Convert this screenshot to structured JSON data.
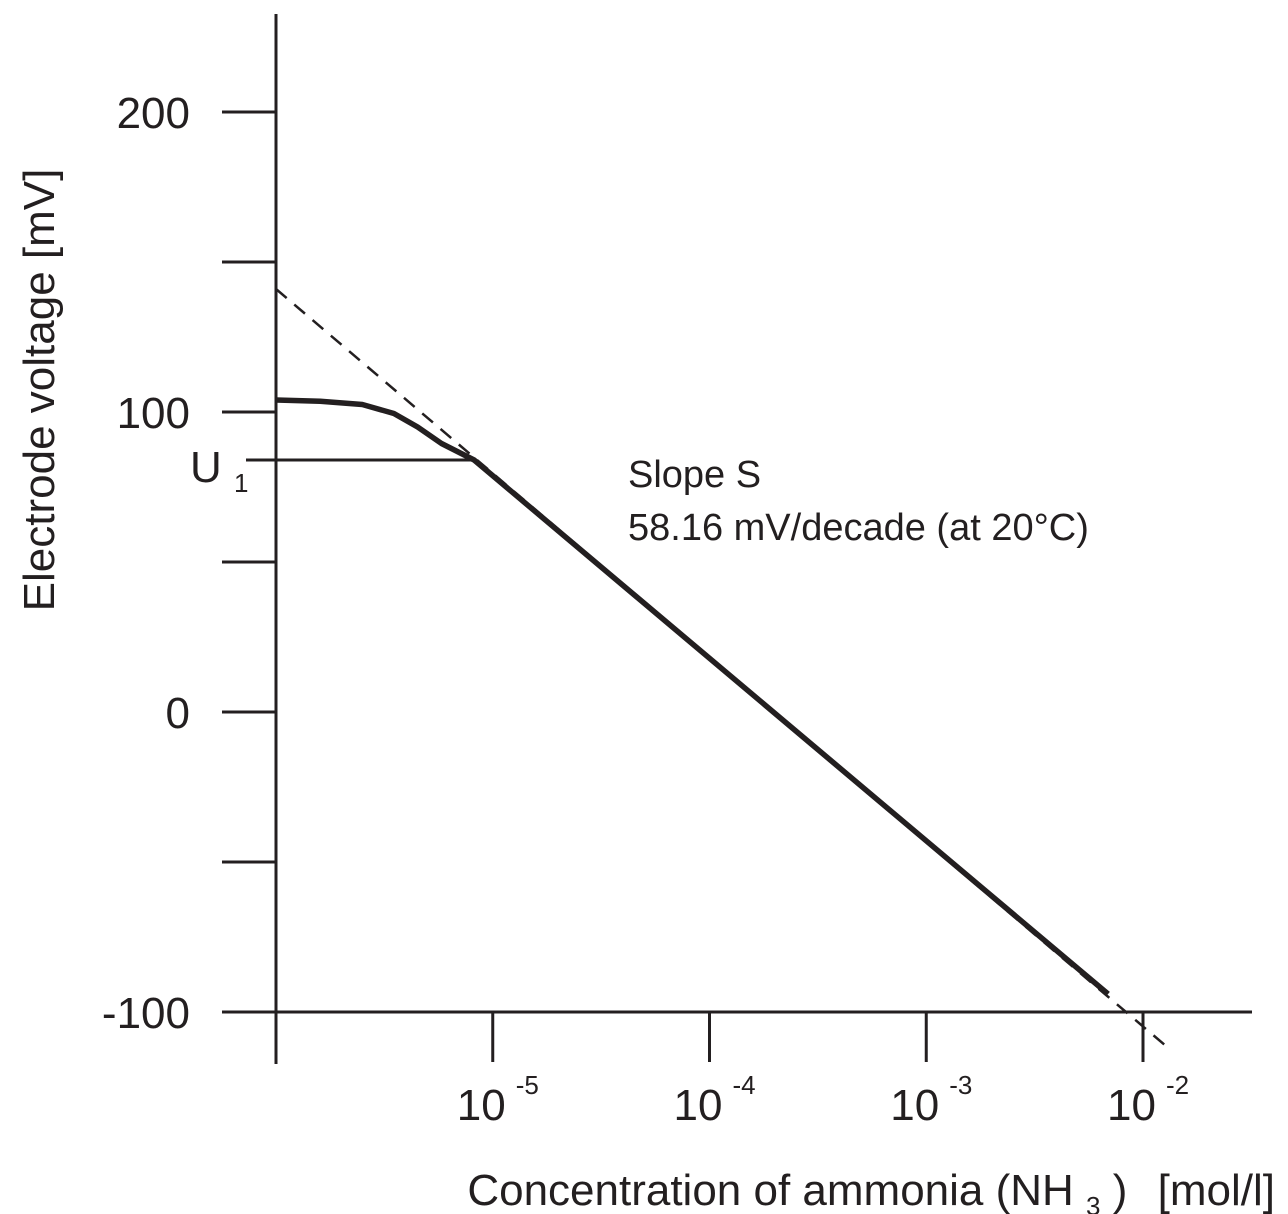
{
  "chart_data": {
    "type": "line",
    "title": "",
    "xlabel": {
      "text": "Concentration of ammonia (NH",
      "sub": "3",
      "close": ")",
      "unit": "[mol/l]"
    },
    "ylabel": "Electrode voltage [mV]",
    "x_scale": "log",
    "xlim": [
      1e-06,
      0.02
    ],
    "ylim": [
      -100,
      232
    ],
    "y_major_ticks": [
      -100,
      0,
      100,
      200
    ],
    "y_minor_ticks": [
      -50,
      50,
      150
    ],
    "y_tick_labels": [
      "-100",
      "0",
      "100",
      "200"
    ],
    "x_ticks": [
      {
        "value": 1e-05,
        "base": "10",
        "exp": "-5"
      },
      {
        "value": 0.0001,
        "base": "10",
        "exp": "-4"
      },
      {
        "value": 0.001,
        "base": "10",
        "exp": "-3"
      },
      {
        "value": 0.01,
        "base": "10",
        "exp": "-2"
      }
    ],
    "u1_marker": {
      "label": "U",
      "sub": "1",
      "value": 84
    },
    "series": [
      {
        "style": "solid",
        "points": [
          {
            "x": 1e-06,
            "y": 104
          },
          {
            "x": 1.6e-06,
            "y": 103.6
          },
          {
            "x": 2.5e-06,
            "y": 102.5
          },
          {
            "x": 3.5e-06,
            "y": 99.5
          },
          {
            "x": 4.5e-06,
            "y": 95
          },
          {
            "x": 5.8e-06,
            "y": 89.5
          },
          {
            "x": 8.2e-06,
            "y": 84
          },
          {
            "x": 0.0069,
            "y": -94
          }
        ]
      },
      {
        "style": "dashed",
        "points": [
          {
            "x": 1e-06,
            "y": 141
          },
          {
            "x": 0.0126,
            "y": -111
          }
        ]
      }
    ],
    "annotations": [
      {
        "text": "Slope S"
      },
      {
        "text": "58.16 mV/decade (at 20°C)"
      }
    ],
    "grid": false,
    "legend": "none"
  }
}
